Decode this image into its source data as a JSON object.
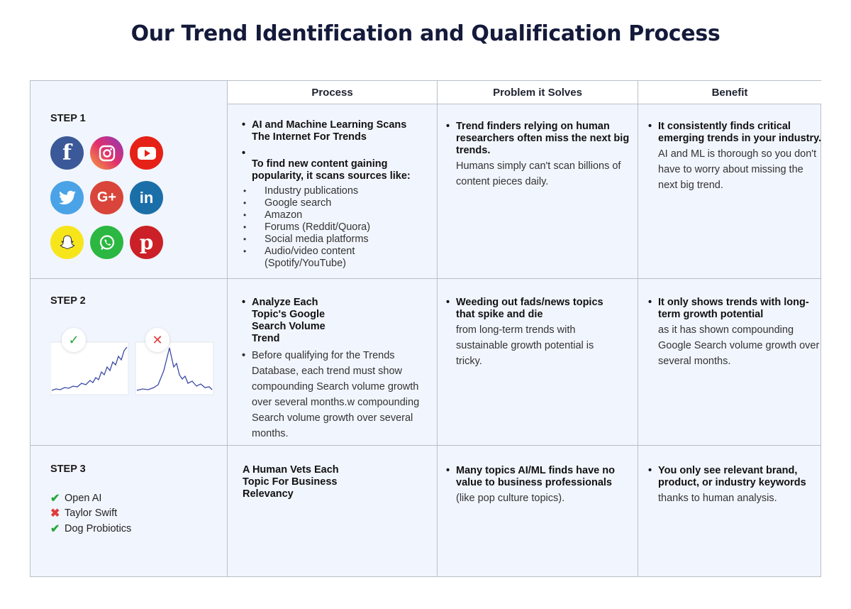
{
  "title": "Our Trend Identification and Qualification Process",
  "columns": [
    "Process",
    "Problem it Solves",
    "Benefit"
  ],
  "steps": [
    {
      "label": "STEP 1",
      "process_bold": [
        "AI and Machine Learning Scans The Internet For Trends",
        "To find new content gaining popularity, it scans sources like:"
      ],
      "sources": [
        "Industry publications",
        "Google search",
        "Amazon",
        "Forums (Reddit/Quora)",
        "Social media platforms",
        "Audio/video content (Spotify/YouTube)"
      ],
      "problem_bold": "Trend finders relying on human researchers often miss the next big trends.",
      "problem_text": "Humans simply can't scan billions of content pieces daily.",
      "benefit_bold": "It consistently finds critical emerging trends in your industry.",
      "benefit_text": "AI and ML is thorough so you don't have to worry about missing the next big trend."
    },
    {
      "label": "STEP 2",
      "process_bold": "Analyze Each Topic's Google Search Volume Trend",
      "process_text": "Before qualifying for the Trends Database, each trend must show compounding Search volume growth over several months.w compounding Search volume growth over several months.",
      "problem_bold": "Weeding out fads/news topics that spike and die",
      "problem_text": "from long-term trends with sustainable growth potential is tricky.",
      "benefit_bold": "It only shows trends with long-term growth potential",
      "benefit_text": "as it has shown compounding Google Search volume growth over several months."
    },
    {
      "label": "STEP 3",
      "process_bold": "A Human Vets Each Topic For Business Relevancy",
      "problem_bold": "Many topics AI/ML finds have no value to business professionals",
      "problem_text": "(like pop culture topics).",
      "benefit_bold": "You only see relevant brand, product, or industry keywords",
      "benefit_text": "thanks to human analysis.",
      "vetted": [
        {
          "name": "Open AI",
          "status": "approved"
        },
        {
          "name": "Taylor Swift",
          "status": "rejected"
        },
        {
          "name": "Dog Probiotics",
          "status": "approved"
        }
      ]
    }
  ],
  "social_icons": [
    "facebook-icon",
    "instagram-icon",
    "youtube-icon",
    "twitter-icon",
    "google-plus-icon",
    "linkedin-icon",
    "snapchat-icon",
    "whatsapp-icon",
    "pinterest-icon"
  ],
  "chart_marks": {
    "good": "✓",
    "bad": "✕"
  },
  "colors": {
    "title": "#141a3a",
    "grid_bg": "#f1f5fd",
    "border": "#b9bfc9",
    "approve": "#2aa63e",
    "reject": "#e03b3b",
    "line": "#3b4aa8"
  }
}
